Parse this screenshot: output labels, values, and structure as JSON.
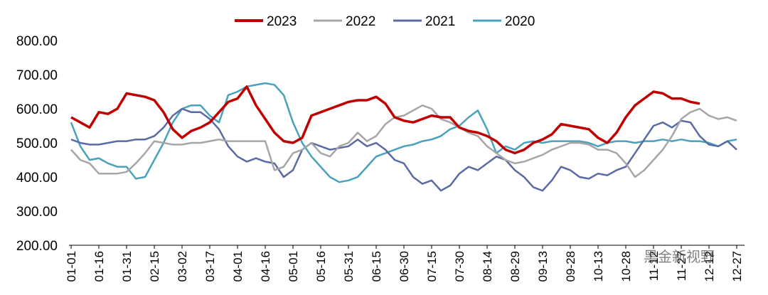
{
  "chart_data": {
    "type": "line",
    "categories": [
      "01-01",
      null,
      null,
      "01-16",
      null,
      null,
      "01-31",
      null,
      null,
      "02-15",
      null,
      null,
      "03-02",
      null,
      null,
      "03-17",
      null,
      null,
      "04-01",
      null,
      null,
      "04-16",
      null,
      null,
      "05-01",
      null,
      null,
      "05-16",
      null,
      null,
      "05-31",
      null,
      null,
      "06-15",
      null,
      null,
      "06-30",
      null,
      null,
      "07-15",
      null,
      null,
      "07-30",
      null,
      null,
      "08-14",
      null,
      null,
      "08-29",
      null,
      null,
      "09-13",
      null,
      null,
      "09-28",
      null,
      null,
      "10-13",
      null,
      null,
      "10-28",
      null,
      null,
      "11-12",
      null,
      null,
      "11-27",
      null,
      null,
      "12-12",
      null,
      null,
      "12-27"
    ],
    "series": [
      {
        "name": "2023",
        "color": "#c00000",
        "width": 3.5,
        "values": [
          575,
          560,
          545,
          590,
          585,
          600,
          645,
          640,
          635,
          625,
          590,
          540,
          515,
          535,
          545,
          560,
          590,
          620,
          630,
          665,
          610,
          570,
          530,
          505,
          500,
          515,
          580,
          590,
          600,
          610,
          620,
          625,
          625,
          635,
          615,
          575,
          565,
          560,
          570,
          580,
          575,
          575,
          545,
          535,
          530,
          520,
          505,
          480,
          470,
          480,
          500,
          510,
          525,
          555,
          550,
          545,
          540,
          515,
          500,
          530,
          575,
          610,
          630,
          650,
          645,
          630,
          630,
          620,
          615,
          null,
          null,
          null,
          null
        ]
      },
      {
        "name": "2022",
        "color": "#a6a6a6",
        "width": 2.5,
        "values": [
          480,
          450,
          440,
          410,
          410,
          410,
          415,
          440,
          470,
          505,
          500,
          495,
          495,
          500,
          500,
          505,
          510,
          505,
          505,
          505,
          505,
          505,
          420,
          430,
          470,
          480,
          500,
          470,
          460,
          490,
          500,
          530,
          505,
          520,
          555,
          575,
          580,
          595,
          610,
          600,
          570,
          560,
          545,
          530,
          520,
          490,
          470,
          450,
          440,
          445,
          455,
          465,
          480,
          490,
          500,
          500,
          495,
          480,
          480,
          470,
          440,
          400,
          420,
          450,
          480,
          520,
          570,
          590,
          600,
          580,
          570,
          575,
          565
        ]
      },
      {
        "name": "2021",
        "color": "#5a6aa3",
        "width": 2.5,
        "values": [
          510,
          500,
          495,
          495,
          500,
          505,
          505,
          510,
          510,
          520,
          545,
          580,
          600,
          590,
          590,
          570,
          540,
          490,
          460,
          445,
          455,
          445,
          440,
          400,
          420,
          480,
          500,
          490,
          480,
          485,
          490,
          510,
          490,
          500,
          480,
          450,
          440,
          400,
          380,
          390,
          360,
          375,
          410,
          430,
          420,
          440,
          460,
          450,
          420,
          400,
          370,
          360,
          390,
          430,
          420,
          400,
          395,
          410,
          405,
          420,
          430,
          470,
          510,
          550,
          560,
          545,
          565,
          560,
          520,
          495,
          490,
          505,
          480
        ]
      },
      {
        "name": "2020",
        "color": "#4aa1bb",
        "width": 2.5,
        "values": [
          560,
          490,
          450,
          455,
          440,
          430,
          430,
          395,
          400,
          450,
          500,
          560,
          600,
          610,
          610,
          580,
          560,
          640,
          650,
          665,
          670,
          675,
          670,
          640,
          560,
          500,
          460,
          430,
          400,
          385,
          390,
          400,
          430,
          460,
          470,
          480,
          490,
          495,
          505,
          510,
          520,
          540,
          550,
          575,
          595,
          540,
          470,
          490,
          480,
          500,
          505,
          500,
          505,
          505,
          505,
          505,
          500,
          490,
          500,
          505,
          505,
          500,
          505,
          505,
          510,
          505,
          510,
          505,
          505,
          500,
          490,
          505,
          510
        ]
      }
    ],
    "ylim": [
      200,
      800
    ],
    "yticks": [
      {
        "value": 200,
        "label": "200.00"
      },
      {
        "value": 300,
        "label": "300.00"
      },
      {
        "value": 400,
        "label": "400.00"
      },
      {
        "value": 500,
        "label": "500.00"
      },
      {
        "value": 600,
        "label": "600.00"
      },
      {
        "value": 700,
        "label": "700.00"
      },
      {
        "value": 800,
        "label": "800.00"
      }
    ],
    "grid": false,
    "legend": "top",
    "watermark": "黑金新视野"
  }
}
